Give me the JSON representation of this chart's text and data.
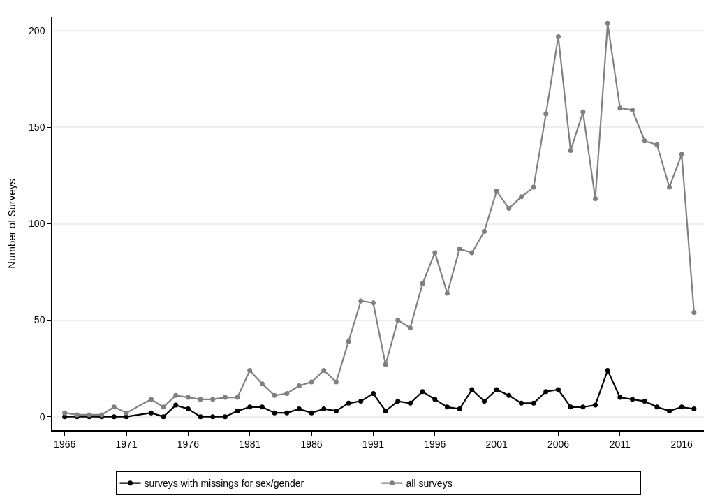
{
  "chart_data": {
    "type": "line",
    "ylabel": "Number of Surveys",
    "x": [
      1966,
      1967,
      1968,
      1969,
      1970,
      1971,
      1973,
      1974,
      1975,
      1976,
      1977,
      1978,
      1979,
      1980,
      1981,
      1982,
      1983,
      1984,
      1985,
      1986,
      1987,
      1988,
      1989,
      1990,
      1991,
      1992,
      1993,
      1994,
      1995,
      1996,
      1997,
      1998,
      1999,
      2000,
      2001,
      2002,
      2003,
      2004,
      2005,
      2006,
      2007,
      2008,
      2009,
      2010,
      2011,
      2012,
      2013,
      2014,
      2015,
      2016,
      2017
    ],
    "series": [
      {
        "name": "surveys with missings for sex/gender",
        "color": "#000000",
        "values": [
          0,
          0,
          0,
          0,
          0,
          0,
          2,
          0,
          6,
          4,
          0,
          0,
          0,
          3,
          5,
          5,
          2,
          2,
          4,
          2,
          4,
          3,
          7,
          8,
          12,
          3,
          8,
          7,
          13,
          9,
          5,
          4,
          14,
          8,
          14,
          11,
          7,
          7,
          13,
          14,
          5,
          5,
          6,
          24,
          10,
          9,
          8,
          5,
          3,
          5,
          4
        ]
      },
      {
        "name": "all surveys",
        "color": "#808080",
        "values": [
          2,
          1,
          1,
          1,
          5,
          2,
          9,
          5,
          11,
          10,
          9,
          9,
          10,
          10,
          24,
          17,
          11,
          12,
          16,
          18,
          24,
          18,
          39,
          60,
          59,
          27,
          50,
          46,
          69,
          85,
          64,
          87,
          85,
          96,
          117,
          108,
          114,
          119,
          157,
          197,
          138,
          158,
          113,
          204,
          160,
          159,
          143,
          141,
          119,
          136,
          54
        ]
      }
    ],
    "xlim": [
      1965,
      2017.8
    ],
    "xticks": [
      1966,
      1971,
      1976,
      1981,
      1986,
      1991,
      1996,
      2001,
      2006,
      2011,
      2016
    ],
    "ylim": [
      -7,
      207
    ],
    "yticks": [
      0,
      50,
      100,
      150,
      200
    ],
    "grid": "y",
    "legend": "bottom",
    "marker": "circle",
    "line_style": "solid"
  }
}
